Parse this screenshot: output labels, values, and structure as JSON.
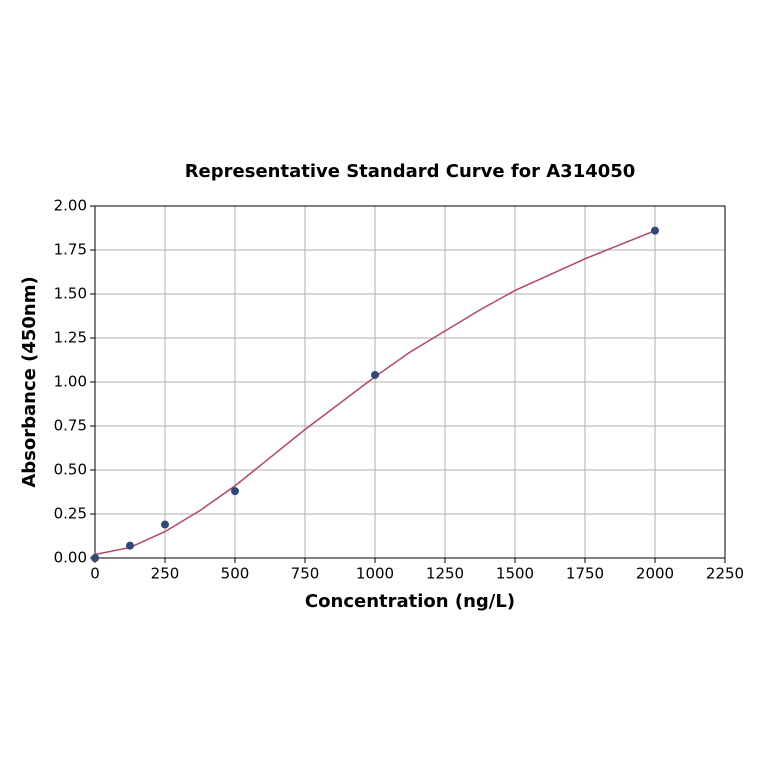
{
  "chart_data": {
    "type": "scatter",
    "title": "Representative Standard Curve for A314050",
    "x_label": "Concentration (ng/L)",
    "y_label": "Absorbance (450nm)",
    "xlim": [
      0,
      2250
    ],
    "xticks": [
      0,
      250,
      500,
      750,
      1000,
      1250,
      1500,
      1750,
      2000,
      2250
    ],
    "ylim": [
      0,
      2
    ],
    "yticks": [
      {
        "value": 0,
        "label": "0.00"
      },
      {
        "value": 0.25,
        "label": "0.25"
      },
      {
        "value": 0.5,
        "label": "0.50"
      },
      {
        "value": 0.75,
        "label": "0.75"
      },
      {
        "value": 1,
        "label": "1.00"
      },
      {
        "value": 1.25,
        "label": "1.25"
      },
      {
        "value": 1.5,
        "label": "1.50"
      },
      {
        "value": 1.75,
        "label": "1.75"
      },
      {
        "value": 2,
        "label": "2.00"
      }
    ],
    "grid": true,
    "series": [
      {
        "type": "line",
        "color": "#b5456a",
        "x": [
          0,
          125,
          250,
          375,
          500,
          625,
          750,
          875,
          1000,
          1125,
          1250,
          1375,
          1500,
          1625,
          1750,
          1875,
          2000
        ],
        "values": [
          0.02,
          0.06,
          0.15,
          0.27,
          0.41,
          0.57,
          0.73,
          0.88,
          1.03,
          1.17,
          1.29,
          1.41,
          1.52,
          1.61,
          1.7,
          1.78,
          1.86
        ]
      },
      {
        "type": "scatter",
        "color": "#2e4a7a",
        "x": [
          0,
          125,
          250,
          500,
          1000,
          2000
        ],
        "values": [
          0,
          0.07,
          0.19,
          0.38,
          1.04,
          1.86
        ]
      }
    ]
  }
}
